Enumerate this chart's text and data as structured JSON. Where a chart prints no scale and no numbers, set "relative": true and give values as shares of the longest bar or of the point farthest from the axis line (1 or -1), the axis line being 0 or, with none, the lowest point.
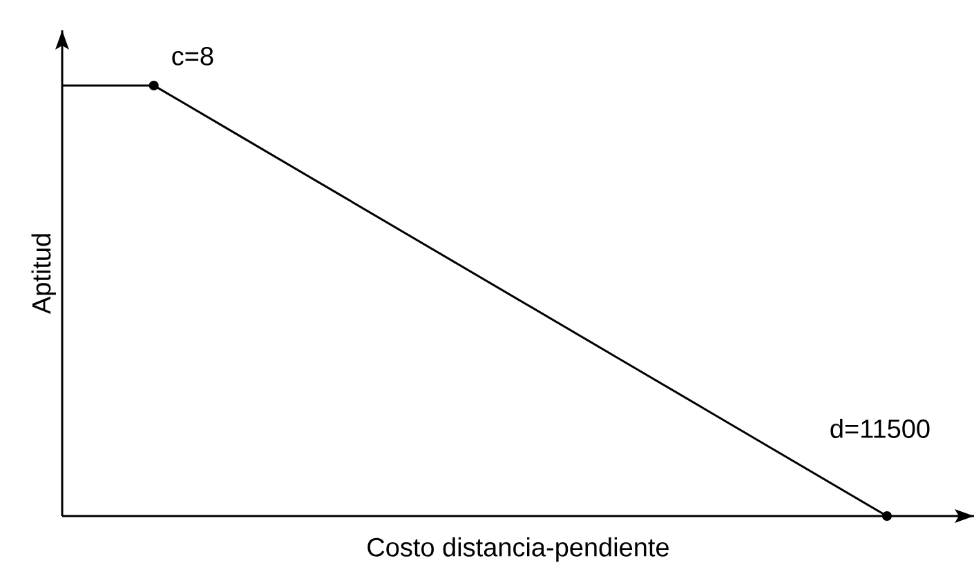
{
  "chart_data": {
    "type": "line",
    "relative": true,
    "xlabel": "Costo distancia-pendiente",
    "ylabel": "Aptitud",
    "categories": [
      null,
      null,
      null,
      null,
      null,
      null,
      null,
      null,
      null,
      null
    ],
    "series": [
      {
        "color": "#000000",
        "values": [
          1,
          1,
          0.875,
          0.75,
          0.625,
          0.5,
          0.375,
          0.25,
          0.125,
          0
        ]
      }
    ],
    "annotations": [
      "c=8",
      "d=11500"
    ]
  }
}
